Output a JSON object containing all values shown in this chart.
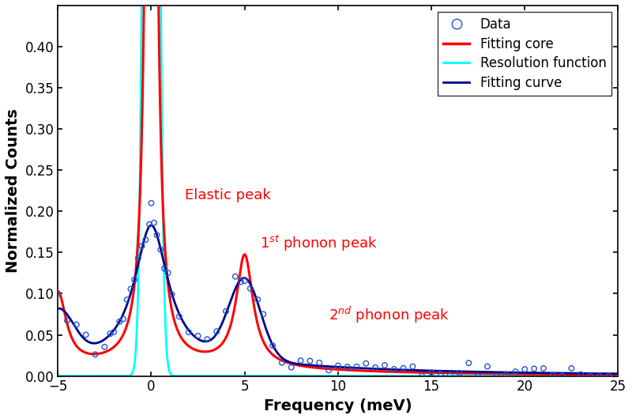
{
  "title": "",
  "xlabel": "Frequency (meV)",
  "ylabel": "Normalized Counts",
  "xlim": [
    -5,
    25
  ],
  "ylim": [
    0,
    0.45
  ],
  "yticks": [
    0,
    0.05,
    0.1,
    0.15,
    0.2,
    0.25,
    0.3,
    0.35,
    0.4
  ],
  "xticks": [
    -5,
    0,
    5,
    10,
    15,
    20,
    25
  ],
  "legend_labels": [
    "Data",
    "Fitting core",
    "Resolution function",
    "Fitting curve"
  ],
  "annotation_elastic": "Elastic peak",
  "annotation_1st": "1$^{st}$ phonon peak",
  "annotation_2nd": "2$^{nd}$ phonon peak",
  "annotation_color": "#ff0000",
  "figsize": [
    8.0,
    5.3
  ],
  "dpi": 100,
  "data_x": [
    -5.0,
    -4.5,
    -4.0,
    -3.5,
    -3.0,
    -2.5,
    -2.2,
    -2.0,
    -1.7,
    -1.5,
    -1.3,
    -1.1,
    -0.9,
    -0.7,
    -0.5,
    -0.3,
    -0.1,
    0.0,
    0.15,
    0.3,
    0.5,
    0.7,
    0.9,
    1.1,
    1.5,
    2.0,
    2.5,
    3.0,
    3.5,
    4.0,
    4.5,
    4.8,
    5.0,
    5.3,
    5.7,
    6.0,
    6.5,
    7.0,
    7.5,
    8.0,
    8.5,
    9.0,
    9.5,
    10.0,
    10.5,
    11.0,
    11.5,
    12.0,
    12.5,
    13.0,
    13.5,
    14.0,
    14.5,
    15.0,
    15.5,
    16.0,
    16.5,
    17.0,
    17.5,
    18.0,
    18.5,
    19.0,
    19.5,
    20.0,
    20.5,
    21.0,
    21.5,
    22.0,
    22.5,
    23.0,
    23.5,
    24.0,
    24.5
  ]
}
